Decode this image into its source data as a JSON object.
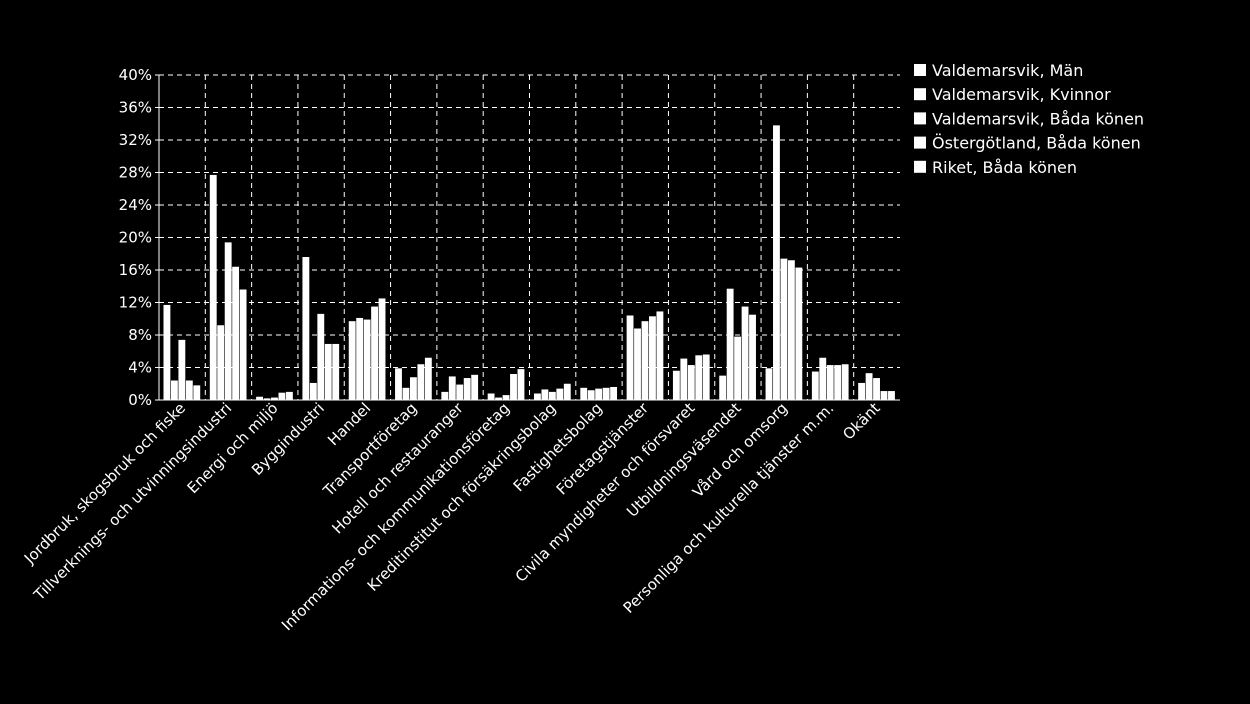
{
  "chart_data": {
    "type": "bar",
    "title": "",
    "xlabel": "",
    "ylabel": "",
    "ylim": [
      0,
      40
    ],
    "yticks": [
      "0%",
      "4%",
      "8%",
      "12%",
      "16%",
      "20%",
      "24%",
      "28%",
      "32%",
      "36%",
      "40%"
    ],
    "ytick_values": [
      0,
      4,
      8,
      12,
      16,
      20,
      24,
      28,
      32,
      36,
      40
    ],
    "grid": "dashed",
    "legend_position": "right",
    "categories": [
      "Jordbruk, skogsbruk och fiske",
      "Tillverknings- och utvinningsindustri",
      "Energi och miljö",
      "Byggindustri",
      "Handel",
      "Transportföretag",
      "Hotell och restauranger",
      "Informations- och kommunikationsföretag",
      "Kreditinstitut och försäkringsbolag",
      "Fastighetsbolag",
      "Företagstjänster",
      "Civila myndigheter och försvaret",
      "Utbildningsväsendet",
      "Vård och omsorg",
      "Personliga och kulturella tjänster m.m.",
      "Okänt"
    ],
    "series": [
      {
        "name": "Valdemarsvik, Män",
        "color": "#ffffff",
        "values": [
          11.7,
          27.7,
          0.4,
          17.6,
          9.7,
          3.9,
          1.0,
          0.8,
          0.8,
          1.5,
          10.4,
          3.6,
          3.0,
          3.9,
          3.5,
          2.1
        ]
      },
      {
        "name": "Valdemarsvik, Kvinnor",
        "color": "#ffffff",
        "values": [
          2.4,
          9.2,
          0.2,
          2.1,
          10.1,
          1.5,
          2.9,
          0.3,
          1.3,
          1.2,
          8.8,
          5.1,
          13.7,
          33.8,
          5.2,
          3.3
        ]
      },
      {
        "name": "Valdemarsvik, Båda könen",
        "color": "#ffffff",
        "values": [
          7.4,
          19.4,
          0.3,
          10.6,
          9.9,
          2.8,
          1.9,
          0.6,
          1.0,
          1.4,
          9.7,
          4.3,
          7.8,
          17.4,
          4.3,
          2.7
        ]
      },
      {
        "name": "Östergötland, Båda könen",
        "color": "#ffffff",
        "values": [
          2.4,
          16.4,
          0.9,
          6.9,
          11.5,
          4.4,
          2.7,
          3.2,
          1.4,
          1.5,
          10.3,
          5.5,
          11.5,
          17.2,
          4.3,
          1.1
        ]
      },
      {
        "name": "Riket, Båda könen",
        "color": "#ffffff",
        "values": [
          1.8,
          13.6,
          1.0,
          6.9,
          12.5,
          5.2,
          3.1,
          3.8,
          2.0,
          1.6,
          10.9,
          5.6,
          10.5,
          16.3,
          4.4,
          1.1
        ]
      }
    ]
  }
}
